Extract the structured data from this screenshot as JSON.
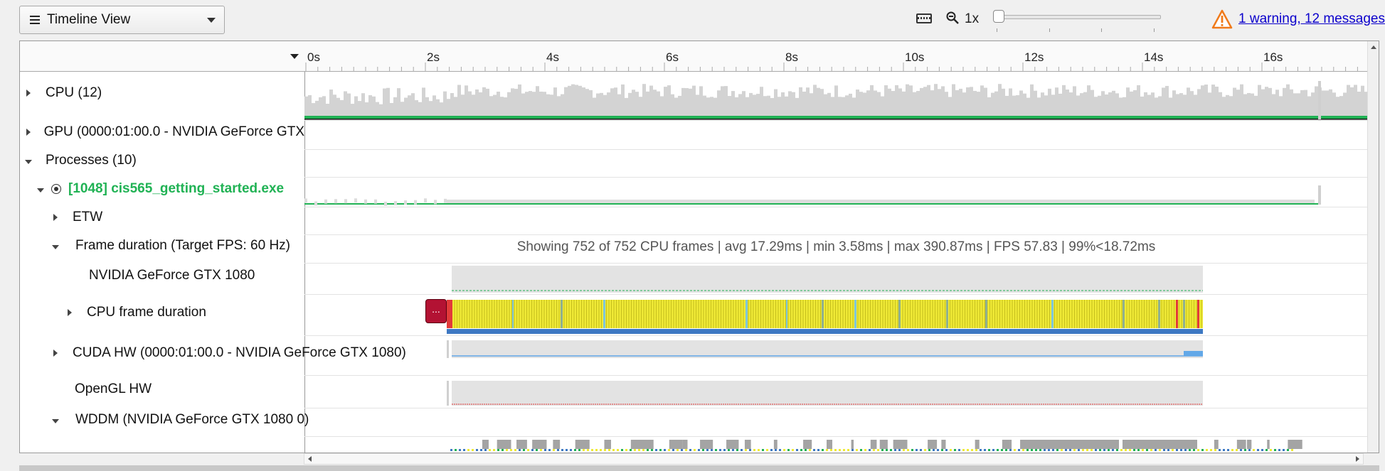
{
  "toolbar": {
    "view_select": "Timeline View",
    "zoom_label": "1x",
    "zoom_level": 0.0,
    "warning_link": "1 warning, 12 messages"
  },
  "rows": {
    "cpu": "CPU (12)",
    "gpu": "GPU (0000:01:00.0 - NVIDIA GeForce GTX",
    "processes": "Processes (10)",
    "process": "[1048] cis565_getting_started.exe",
    "etw": "ETW",
    "frame_duration": "Frame duration (Target FPS: 60 Hz)",
    "nvidia": "NVIDIA GeForce GTX 1080",
    "cpu_frame": "CPU frame duration",
    "cuda": "CUDA HW (0000:01:00.0 - NVIDIA GeForce GTX 1080)",
    "opengl": "OpenGL HW",
    "wddm": "WDDM (NVIDIA GeForce GTX 1080 0)"
  },
  "ruler": {
    "ticks": [
      "0s",
      "2s",
      "4s",
      "6s",
      "8s",
      "10s",
      "12s",
      "14s",
      "16s"
    ]
  },
  "timeline": {
    "summary": "Showing 752 of 752 CPU frames | avg 17.29ms | min 3.58ms | max 390.87ms | FPS 57.83 | 99%<18.72ms",
    "collapsed_marker": "..."
  },
  "colors": {
    "accent_green": "#20b254",
    "frame_yellow": "#f0ea36",
    "frame_red": "#e23a3a",
    "bar_blue": "#3d78c3",
    "link_blue": "#0b00cc",
    "warning_orange": "#f07a1a"
  },
  "icons": [
    "menu-icon",
    "keyboard-icon",
    "zoom-out-icon",
    "warning-icon"
  ]
}
